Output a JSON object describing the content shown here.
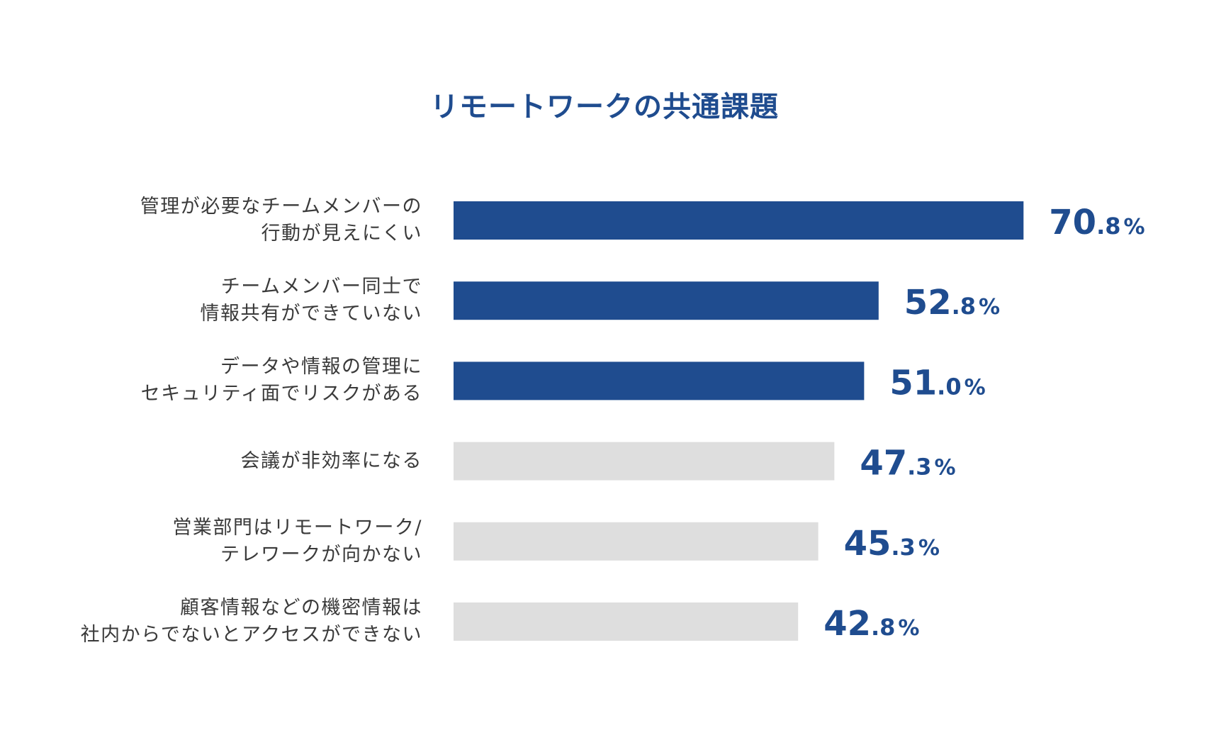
{
  "chart_data": {
    "type": "bar",
    "orientation": "horizontal",
    "title": "リモートワークの共通課題",
    "xlim": [
      0,
      100
    ],
    "grid": false,
    "legend": "none",
    "colors": {
      "highlight": "#1f4c8f",
      "muted": "#dedede",
      "value_text": "#1f4c8f",
      "title": "#1f4c8f",
      "label_text": "#3a3a3a"
    },
    "categories": [
      [
        "管理が必要なチームメンバーの",
        "行動が見えにくい"
      ],
      [
        "チームメンバー同士で",
        "情報共有ができていない"
      ],
      [
        "データや情報の管理に",
        "セキュリティ面でリスクがある"
      ],
      [
        "会議が非効率になる"
      ],
      [
        "営業部門はリモートワーク/",
        "テレワークが向かない"
      ],
      [
        "顧客情報などの機密情報は",
        "社内からでないとアクセスができない"
      ]
    ],
    "values": [
      70.8,
      52.8,
      51.0,
      47.3,
      45.3,
      42.8
    ],
    "value_labels": [
      {
        "int": "70",
        "dec": ".8",
        "unit": "%"
      },
      {
        "int": "52",
        "dec": ".8",
        "unit": "%"
      },
      {
        "int": "51",
        "dec": ".0",
        "unit": "%"
      },
      {
        "int": "47",
        "dec": ".3",
        "unit": "%"
      },
      {
        "int": "45",
        "dec": ".3",
        "unit": "%"
      },
      {
        "int": "42",
        "dec": ".8",
        "unit": "%"
      }
    ],
    "highlighted": [
      true,
      true,
      true,
      false,
      false,
      false
    ]
  }
}
